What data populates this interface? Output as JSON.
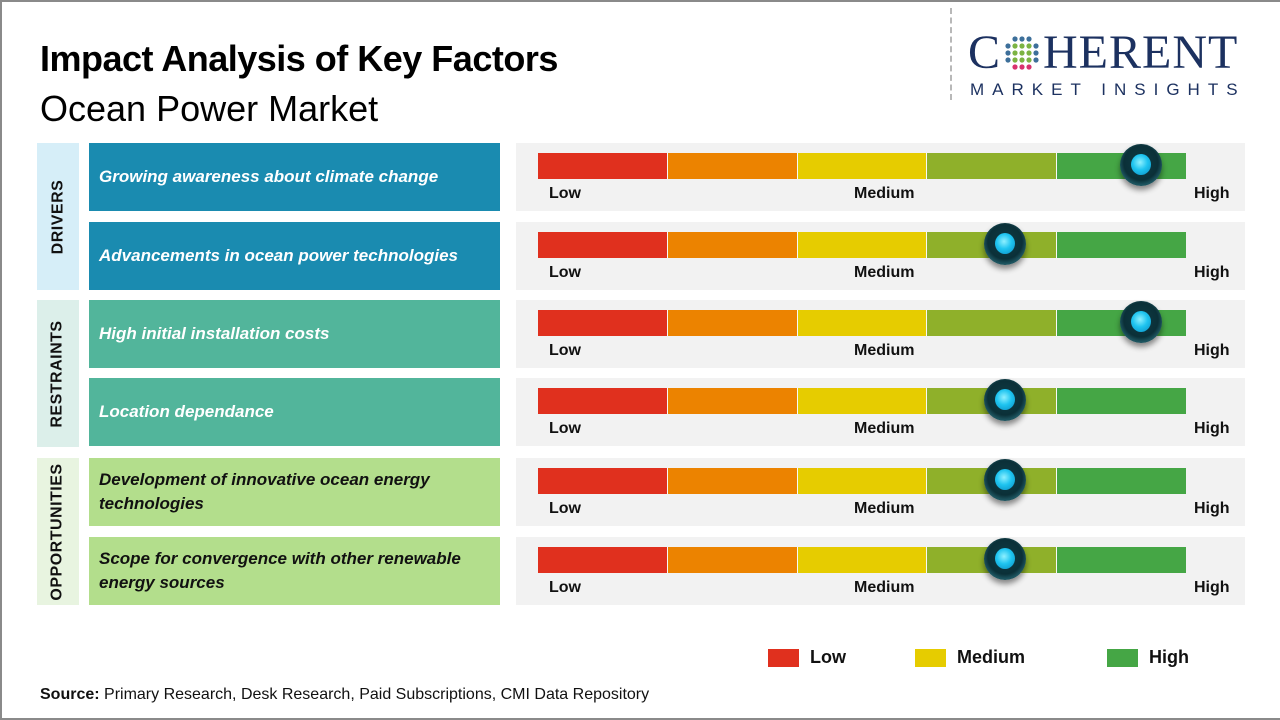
{
  "title": "Impact Analysis of Key Factors",
  "subtitle": "Ocean Power Market",
  "logo": {
    "main_left": "C",
    "main_right": "HERENT",
    "sub": "MARKET INSIGHTS"
  },
  "scale": {
    "labels": {
      "low": "Low",
      "medium": "Medium",
      "high": "High"
    },
    "segment_colors": [
      "#e0301e",
      "#ec8300",
      "#e6cc00",
      "#8fb02a",
      "#45a645"
    ]
  },
  "categories": [
    {
      "label": "DRIVERS",
      "bg": "#d6eef8",
      "factor_bg": "#1a8bb0",
      "factor_text_color": "#ffffff",
      "factors": [
        {
          "text": "Growing awareness about climate change",
          "impact": 0.93
        },
        {
          "text": "Advancements in ocean power technologies",
          "impact": 0.72
        }
      ]
    },
    {
      "label": "RESTRAINTS",
      "bg": "#dcefea",
      "factor_bg": "#52b59b",
      "factor_text_color": "#ffffff",
      "factors": [
        {
          "text": "High initial installation costs",
          "impact": 0.93
        },
        {
          "text": "Location dependance",
          "impact": 0.72
        }
      ]
    },
    {
      "label": "OPPORTUNITIES",
      "bg": "#e8f4e0",
      "factor_bg": "#b3de8c",
      "factor_text_color": "#111111",
      "factors": [
        {
          "text": "Development of innovative ocean energy technologies",
          "impact": 0.72
        },
        {
          "text": "Scope for convergence with other renewable energy sources",
          "impact": 0.72
        }
      ]
    }
  ],
  "legend": [
    {
      "label": "Low",
      "color": "#e0301e"
    },
    {
      "label": "Medium",
      "color": "#e6cc00"
    },
    {
      "label": "High",
      "color": "#45a645"
    }
  ],
  "source": {
    "label": "Source:",
    "text": " Primary Research, Desk Research, Paid Subscriptions, CMI Data Repository"
  }
}
